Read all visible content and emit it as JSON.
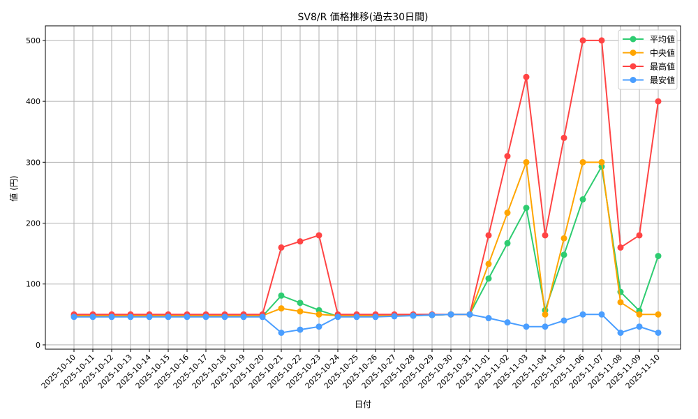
{
  "chart_data": {
    "type": "line",
    "title": "SV8/R 価格推移(過去30日間)",
    "xlabel": "日付",
    "ylabel": "値 (円)",
    "ylim": [
      -7,
      524
    ],
    "yticks": [
      0,
      100,
      200,
      300,
      400,
      500
    ],
    "grid": true,
    "legend_position": "top-right",
    "x": [
      "2025-10-10",
      "2025-10-11",
      "2025-10-12",
      "2025-10-13",
      "2025-10-14",
      "2025-10-15",
      "2025-10-16",
      "2025-10-17",
      "2025-10-18",
      "2025-10-19",
      "2025-10-20",
      "2025-10-21",
      "2025-10-22",
      "2025-10-23",
      "2025-10-24",
      "2025-10-25",
      "2025-10-26",
      "2025-10-27",
      "2025-10-28",
      "2025-10-29",
      "2025-10-30",
      "2025-10-31",
      "2025-11-01",
      "2025-11-02",
      "2025-11-03",
      "2025-11-04",
      "2025-11-05",
      "2025-11-06",
      "2025-11-07",
      "2025-11-08",
      "2025-11-09",
      "2025-11-10"
    ],
    "series": [
      {
        "name": "平均値",
        "color": "#2ecc71",
        "values": [
          47,
          47,
          47,
          47,
          47,
          47,
          47,
          47,
          47,
          47,
          47,
          81,
          69,
          57,
          47,
          47,
          47,
          48,
          48,
          49,
          50,
          50,
          109,
          167,
          225,
          57,
          148,
          239,
          293,
          87,
          56,
          146
        ]
      },
      {
        "name": "中央値",
        "color": "#ffa500",
        "values": [
          48,
          48,
          48,
          48,
          48,
          48,
          48,
          48,
          48,
          48,
          48,
          60,
          55,
          50,
          48,
          48,
          48,
          48,
          49,
          49,
          50,
          50,
          133,
          217,
          300,
          50,
          175,
          300,
          300,
          70,
          50,
          50
        ]
      },
      {
        "name": "最高値",
        "color": "#ff4444",
        "values": [
          50,
          50,
          50,
          50,
          50,
          50,
          50,
          50,
          50,
          50,
          50,
          160,
          170,
          180,
          50,
          50,
          50,
          50,
          50,
          50,
          50,
          50,
          180,
          310,
          440,
          180,
          340,
          500,
          500,
          160,
          180,
          400
        ]
      },
      {
        "name": "最安値",
        "color": "#4a9eff",
        "values": [
          46,
          46,
          46,
          46,
          46,
          46,
          46,
          46,
          46,
          46,
          46,
          20,
          25,
          30,
          46,
          46,
          46,
          47,
          48,
          49,
          50,
          50,
          44,
          37,
          30,
          30,
          40,
          50,
          50,
          20,
          30,
          20
        ]
      }
    ]
  }
}
